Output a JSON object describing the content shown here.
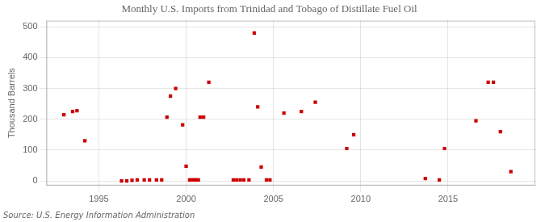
{
  "chart_data": {
    "type": "scatter",
    "title": "Monthly U.S. Imports from Trinidad and Tobago of Distillate Fuel Oil",
    "ylabel": "Thousand Barrels",
    "annotation": "Source: U.S. Energy Information Administration",
    "color": "#cc0000",
    "marker": "square",
    "grid": true,
    "xlim": [
      1992.0,
      2020.0
    ],
    "ylim": [
      -15,
      520
    ],
    "xticks": [
      1995,
      2000,
      2005,
      2010,
      2015
    ],
    "yticks": [
      0,
      100,
      200,
      300,
      400,
      500
    ],
    "x": [
      1993.0,
      1993.5,
      1993.75,
      1994.2,
      1996.3,
      1996.6,
      1996.9,
      1997.2,
      1997.6,
      1997.9,
      1998.3,
      1998.6,
      1998.9,
      1999.1,
      1999.4,
      1999.8,
      2000.0,
      2000.2,
      2000.3,
      2000.4,
      2000.5,
      2000.6,
      2000.7,
      2000.8,
      2001.0,
      2001.3,
      2002.7,
      2002.9,
      2003.1,
      2003.3,
      2003.6,
      2003.9,
      2004.1,
      2004.3,
      2004.6,
      2004.8,
      2005.6,
      2006.6,
      2007.4,
      2009.2,
      2009.6,
      2013.7,
      2014.5,
      2014.8,
      2016.6,
      2017.3,
      2017.6,
      2018.0,
      2018.6
    ],
    "values": [
      215,
      225,
      228,
      130,
      0,
      0,
      2,
      3,
      3,
      3,
      3,
      3,
      207,
      275,
      300,
      182,
      48,
      3,
      3,
      3,
      3,
      3,
      3,
      207,
      207,
      320,
      3,
      3,
      3,
      3,
      3,
      480,
      240,
      45,
      3,
      3,
      220,
      225,
      255,
      105,
      150,
      8,
      3,
      105,
      195,
      320,
      320,
      160,
      30
    ]
  }
}
